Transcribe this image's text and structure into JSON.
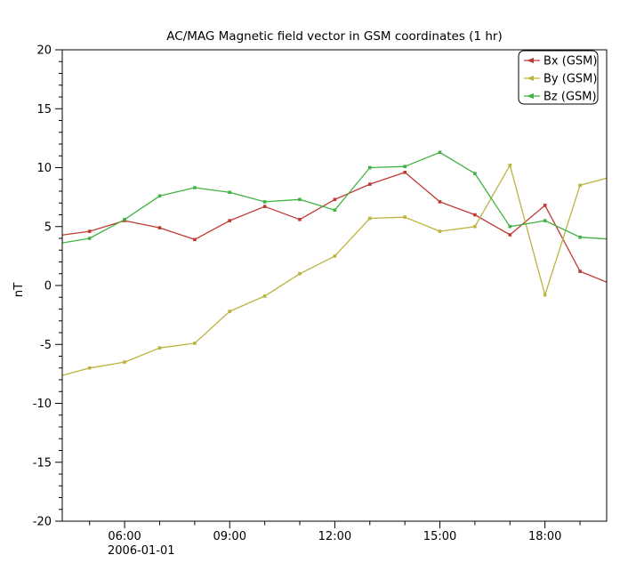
{
  "window": {
    "background": "#ffffff"
  },
  "chart_data": {
    "type": "line",
    "title": "AC/MAG  Magnetic field vector in GSM coordinates (1 hr)",
    "ylabel": "nT",
    "x_axis_date": "2006-01-01",
    "ylim": [
      -20,
      20
    ],
    "y_major_ticks": [
      20,
      15,
      10,
      5,
      0,
      -5,
      -10,
      -15,
      -20
    ],
    "y_minor_step": 1,
    "xlim_hours": [
      4.22,
      19.76
    ],
    "x_major_ticks": [
      {
        "hour": 6,
        "label": "06:00"
      },
      {
        "hour": 9,
        "label": "09:00"
      },
      {
        "hour": 12,
        "label": "12:00"
      },
      {
        "hour": 15,
        "label": "15:00"
      },
      {
        "hour": 18,
        "label": "18:00"
      }
    ],
    "x_minor_step_hours": 1,
    "x_hours": [
      4,
      5,
      6,
      7,
      8,
      9,
      10,
      11,
      12,
      13,
      14,
      15,
      16,
      17,
      18,
      19,
      20
    ],
    "series": [
      {
        "name": "Bx (GSM)",
        "color": "#c03a35",
        "marker": "square",
        "values": [
          4.2,
          4.6,
          5.5,
          4.9,
          3.9,
          5.5,
          6.7,
          5.6,
          7.3,
          8.6,
          9.6,
          7.1,
          6.0,
          4.3,
          6.8,
          1.2,
          0.0
        ]
      },
      {
        "name": "By (GSM)",
        "color": "#bcb43e",
        "marker": "square",
        "values": [
          -7.8,
          -7.0,
          -6.5,
          -5.3,
          -4.9,
          -2.2,
          -0.9,
          1.0,
          2.5,
          5.7,
          5.8,
          4.6,
          5.0,
          10.2,
          -0.8,
          8.5,
          9.3
        ]
      },
      {
        "name": "Bz (GSM)",
        "color": "#42b243",
        "marker": "square",
        "values": [
          3.5,
          4.0,
          5.6,
          7.6,
          8.3,
          7.9,
          7.1,
          7.3,
          6.4,
          10.0,
          10.1,
          11.3,
          9.5,
          5.0,
          5.5,
          4.1,
          3.9
        ]
      }
    ],
    "legend": {
      "position": "top-right",
      "entries": [
        "Bx (GSM)",
        "By (GSM)",
        "Bz (GSM)"
      ]
    },
    "grid": false
  }
}
